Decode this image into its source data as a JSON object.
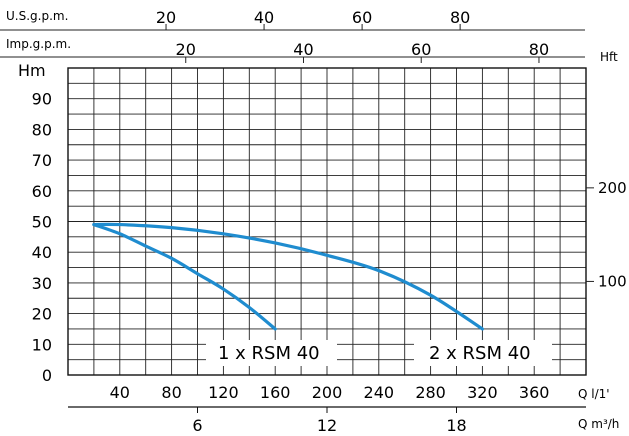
{
  "chart_data": {
    "type": "line",
    "units": {
      "left_axis": "Hm",
      "right_axis": "Hft",
      "bottom_axis_primary": "Q l/1'",
      "bottom_axis_secondary": "Q m³/h",
      "top_axis_1": "U.S.g.p.m.",
      "top_axis_2": "Imp.g.p.m."
    },
    "xlim": [
      0,
      400
    ],
    "ylim": [
      0,
      100
    ],
    "grid": true,
    "left_ticks": [
      0,
      10,
      20,
      30,
      40,
      50,
      60,
      70,
      80,
      90
    ],
    "bottom_ticks": [
      40,
      80,
      120,
      160,
      200,
      240,
      280,
      320,
      360
    ],
    "m3h_ticks": [
      "6",
      "12",
      "18"
    ],
    "usgpm_ticks": [
      "20",
      "40",
      "60",
      "80"
    ],
    "impgpm_ticks": [
      "20",
      "40",
      "60",
      "80"
    ],
    "hft_ticks": [
      "200",
      "100"
    ],
    "series": [
      {
        "name": "1 x RSM 40",
        "color": "#1f8ccf",
        "x": [
          20,
          40,
          60,
          80,
          100,
          120,
          140,
          160
        ],
        "y": [
          49,
          46,
          42,
          38,
          33,
          28,
          22,
          15
        ]
      },
      {
        "name": "2 x RSM 40",
        "color": "#1f8ccf",
        "x": [
          20,
          40,
          80,
          120,
          160,
          200,
          240,
          280,
          320
        ],
        "y": [
          49,
          49,
          48,
          46,
          43,
          39,
          34,
          26,
          15
        ]
      }
    ],
    "curve_labels": [
      "1 x RSM 40",
      "2 x RSM 40"
    ]
  }
}
